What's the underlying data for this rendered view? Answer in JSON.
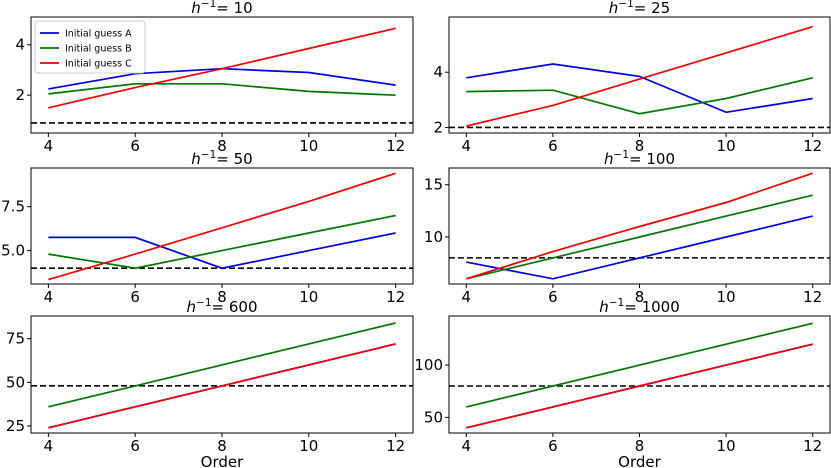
{
  "colors": {
    "A": "#0000dd",
    "B": "#007700",
    "C": "#ee0000",
    "reference": "#000000"
  },
  "legend": {
    "A": "Initial guess A",
    "B": "Initial guess B",
    "C": "Initial guess C"
  },
  "chart_data": [
    {
      "type": "line",
      "title_prefix": "h",
      "title_sup": "−1",
      "title_value": "= 10",
      "xlabel": "",
      "x": [
        4,
        6,
        8,
        10,
        12
      ],
      "xticks": [
        "4",
        "6",
        "8",
        "10",
        "12"
      ],
      "xlim": [
        3.6,
        12.4
      ],
      "ylim": [
        0.5,
        5.1
      ],
      "yticks": [
        2,
        4
      ],
      "ytick_labels": [
        "2",
        "4"
      ],
      "reference_line": 0.9,
      "series": [
        {
          "key": "A",
          "name": "Initial guess A",
          "values": [
            2.25,
            2.85,
            3.05,
            2.9,
            2.4
          ]
        },
        {
          "key": "B",
          "name": "Initial guess B",
          "values": [
            2.05,
            2.45,
            2.45,
            2.15,
            2.0
          ]
        },
        {
          "key": "C",
          "name": "Initial guess C",
          "values": [
            1.5,
            2.3,
            3.05,
            3.85,
            4.65
          ]
        }
      ]
    },
    {
      "type": "line",
      "title_prefix": "h",
      "title_sup": "−1",
      "title_value": "= 25",
      "xlabel": "",
      "x": [
        4,
        6,
        8,
        10,
        12
      ],
      "xticks": [
        "4",
        "6",
        "8",
        "10",
        "12"
      ],
      "xlim": [
        3.6,
        12.4
      ],
      "ylim": [
        1.8,
        6.0
      ],
      "yticks": [
        2,
        4
      ],
      "ytick_labels": [
        "2",
        "4"
      ],
      "reference_line": 2.0,
      "series": [
        {
          "key": "A",
          "name": "Initial guess A",
          "values": [
            3.8,
            4.3,
            3.85,
            2.55,
            3.05
          ]
        },
        {
          "key": "B",
          "name": "Initial guess B",
          "values": [
            3.3,
            3.35,
            2.5,
            3.05,
            3.8
          ]
        },
        {
          "key": "C",
          "name": "Initial guess C",
          "values": [
            2.05,
            2.8,
            3.75,
            4.7,
            5.65
          ]
        }
      ]
    },
    {
      "type": "line",
      "title_prefix": "h",
      "title_sup": "−1",
      "title_value": "= 50",
      "xlabel": "",
      "x": [
        4,
        6,
        8,
        10,
        12
      ],
      "xticks": [
        "4",
        "6",
        "8",
        "10",
        "12"
      ],
      "xlim": [
        3.6,
        12.4
      ],
      "ylim": [
        3.1,
        9.7
      ],
      "yticks": [
        5.0,
        7.5
      ],
      "ytick_labels": [
        "5.0",
        "7.5"
      ],
      "reference_line": 4.0,
      "series": [
        {
          "key": "A",
          "name": "Initial guess A",
          "values": [
            5.75,
            5.75,
            4.0,
            5.0,
            6.0
          ]
        },
        {
          "key": "B",
          "name": "Initial guess B",
          "values": [
            4.8,
            4.0,
            5.0,
            6.0,
            7.0
          ]
        },
        {
          "key": "C",
          "name": "Initial guess C",
          "values": [
            3.35,
            4.8,
            6.3,
            7.8,
            9.4
          ]
        }
      ]
    },
    {
      "type": "line",
      "title_prefix": "h",
      "title_sup": "−1",
      "title_value": "= 100",
      "xlabel": "",
      "x": [
        4,
        6,
        8,
        10,
        12
      ],
      "xticks": [
        "4",
        "6",
        "8",
        "10",
        "12"
      ],
      "xlim": [
        3.6,
        12.4
      ],
      "ylim": [
        5.5,
        16.6
      ],
      "yticks": [
        10,
        15
      ],
      "ytick_labels": [
        "10",
        "15"
      ],
      "reference_line": 8.0,
      "series": [
        {
          "key": "A",
          "name": "Initial guess A",
          "values": [
            7.6,
            6.0,
            8.0,
            10.0,
            12.0
          ]
        },
        {
          "key": "B",
          "name": "Initial guess B",
          "values": [
            6.0,
            8.0,
            10.0,
            12.0,
            14.0
          ]
        },
        {
          "key": "C",
          "name": "Initial guess C",
          "values": [
            6.0,
            8.6,
            11.0,
            13.3,
            16.1
          ]
        }
      ]
    },
    {
      "type": "line",
      "title_prefix": "h",
      "title_sup": "−1",
      "title_value": "= 600",
      "xlabel": "Order",
      "x": [
        4,
        6,
        8,
        10,
        12
      ],
      "xticks": [
        "4",
        "6",
        "8",
        "10",
        "12"
      ],
      "xlim": [
        3.6,
        12.4
      ],
      "ylim": [
        21,
        88
      ],
      "yticks": [
        25,
        50,
        75
      ],
      "ytick_labels": [
        "25",
        "50",
        "75"
      ],
      "reference_line": 48,
      "series": [
        {
          "key": "A",
          "name": "Initial guess A",
          "values": [
            24,
            36,
            48,
            60,
            72
          ]
        },
        {
          "key": "B",
          "name": "Initial guess B",
          "values": [
            36,
            48,
            60,
            72,
            84
          ]
        },
        {
          "key": "C",
          "name": "Initial guess C",
          "values": [
            24,
            36,
            48,
            60,
            72
          ]
        }
      ]
    },
    {
      "type": "line",
      "title_prefix": "h",
      "title_sup": "−1",
      "title_value": "= 1000",
      "xlabel": "Order",
      "x": [
        4,
        6,
        8,
        10,
        12
      ],
      "xticks": [
        "4",
        "6",
        "8",
        "10",
        "12"
      ],
      "xlim": [
        3.6,
        12.4
      ],
      "ylim": [
        35,
        147
      ],
      "yticks": [
        50,
        100
      ],
      "ytick_labels": [
        "50",
        "100"
      ],
      "reference_line": 80,
      "series": [
        {
          "key": "A",
          "name": "Initial guess A",
          "values": [
            40,
            60,
            80,
            100,
            120
          ]
        },
        {
          "key": "B",
          "name": "Initial guess B",
          "values": [
            60,
            80,
            100,
            120,
            140
          ]
        },
        {
          "key": "C",
          "name": "Initial guess C",
          "values": [
            40,
            60,
            80,
            100,
            120
          ]
        }
      ]
    }
  ]
}
